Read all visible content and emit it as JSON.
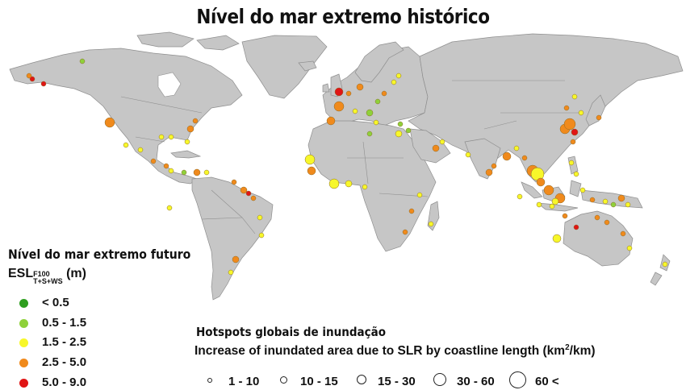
{
  "title": "Nível do mar extremo histórico",
  "color_legend": {
    "heading": "Nível do mar extremo futuro",
    "unit_main": "ESL",
    "unit_sup": "F100",
    "unit_sub": "T+S+WS",
    "unit_paren": "(m)",
    "classes": [
      {
        "label": "< 0.5",
        "color": "#2e9e1f"
      },
      {
        "label": "0.5 - 1.5",
        "color": "#8fd13a"
      },
      {
        "label": "1.5 - 2.5",
        "color": "#f7f72a"
      },
      {
        "label": "2.5 - 5.0",
        "color": "#f08a1c"
      },
      {
        "label": "5.0 - 9.0",
        "color": "#e01515"
      }
    ]
  },
  "size_legend": {
    "heading": "Hotspots globais de inundação",
    "subtitle": "Increase of inundated area due to SLR by coastline length (km",
    "subtitle_sup": "2",
    "subtitle_end": "/km)",
    "classes": [
      "1 - 10",
      "10 - 15",
      "15 - 30",
      "30 - 60",
      "60 <"
    ]
  },
  "hotspot_colors": {
    "lt05": "#2e9e1f",
    "c05_15": "#8fd13a",
    "c15_25": "#f7f72a",
    "c25_50": "#f08a1c",
    "c50_90": "#e01515"
  }
}
